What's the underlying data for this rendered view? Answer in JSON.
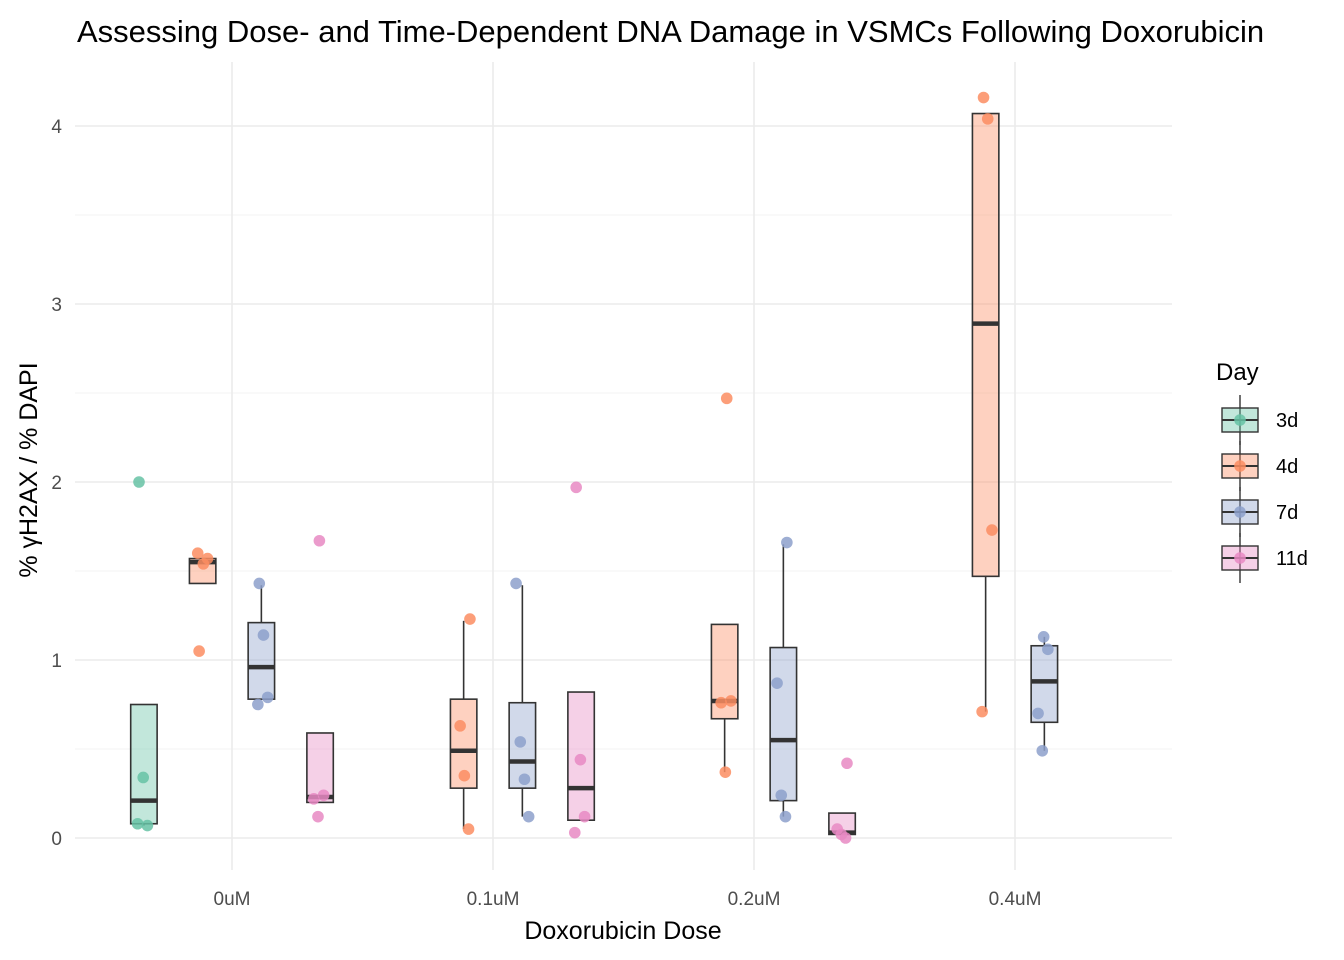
{
  "chart_data": {
    "type": "box",
    "title": "Assessing Dose- and Time-Dependent DNA Damage in VSMCs Following Doxorubicin",
    "xlabel": "Doxorubicin Dose",
    "ylabel": "% γH2AX / % DAPI",
    "categories": [
      "0uM",
      "0.1uM",
      "0.2uM",
      "0.4uM"
    ],
    "y_ticks": [
      "0",
      "1",
      "2",
      "3",
      "4"
    ],
    "ylim": [
      -0.15,
      4.3
    ],
    "grid": true,
    "legend": {
      "title": "Day",
      "placement": "right"
    },
    "series": [
      {
        "name": "3d",
        "color": "#66C2A5",
        "groups": [
          {
            "category": "0uM",
            "box": [
              0.08,
              0.21,
              0.75
            ],
            "whiskers": [
              0.07,
              0.75
            ],
            "points": [
              0.08,
              0.07,
              0.34,
              2.0
            ]
          }
        ]
      },
      {
        "name": "4d",
        "color": "#FC8D62",
        "groups": [
          {
            "category": "0uM",
            "box": [
              1.43,
              1.55,
              1.57
            ],
            "whiskers": [
              1.43,
              1.57
            ],
            "points": [
              1.6,
              1.57,
              1.54,
              1.05
            ]
          },
          {
            "category": "0.1uM",
            "box": [
              0.28,
              0.49,
              0.78
            ],
            "whiskers": [
              0.05,
              1.22
            ],
            "points": [
              0.05,
              0.35,
              0.63,
              1.23
            ]
          },
          {
            "category": "0.2uM",
            "box": [
              0.67,
              0.77,
              1.2
            ],
            "whiskers": [
              0.37,
              1.2
            ],
            "points": [
              0.37,
              0.76,
              0.77,
              2.47
            ]
          },
          {
            "category": "0.4uM",
            "box": [
              1.47,
              2.89,
              4.07
            ],
            "whiskers": [
              0.71,
              4.07
            ],
            "points": [
              0.71,
              1.73,
              4.04,
              4.16
            ]
          }
        ]
      },
      {
        "name": "7d",
        "color": "#8DA0CB",
        "groups": [
          {
            "category": "0uM",
            "box": [
              0.78,
              0.96,
              1.21
            ],
            "whiskers": [
              0.78,
              1.42
            ],
            "points": [
              0.75,
              0.79,
              1.14,
              1.43
            ]
          },
          {
            "category": "0.1uM",
            "box": [
              0.28,
              0.43,
              0.76
            ],
            "whiskers": [
              0.12,
              1.42
            ],
            "points": [
              0.12,
              0.33,
              0.54,
              1.43
            ]
          },
          {
            "category": "0.2uM",
            "box": [
              0.21,
              0.55,
              1.07
            ],
            "whiskers": [
              0.12,
              1.65
            ],
            "points": [
              0.12,
              0.24,
              0.87,
              1.66
            ]
          },
          {
            "category": "0.4uM",
            "box": [
              0.65,
              0.88,
              1.08
            ],
            "whiskers": [
              0.49,
              1.13
            ],
            "points": [
              0.49,
              0.7,
              1.06,
              1.13
            ]
          }
        ]
      },
      {
        "name": "11d",
        "color": "#E78AC3",
        "groups": [
          {
            "category": "0uM",
            "box": [
              0.2,
              0.23,
              0.59
            ],
            "whiskers": [
              0.2,
              0.59
            ],
            "points": [
              0.12,
              0.22,
              0.24,
              1.67
            ]
          },
          {
            "category": "0.1uM",
            "box": [
              0.1,
              0.28,
              0.82
            ],
            "whiskers": [
              0.1,
              0.82
            ],
            "points": [
              0.03,
              0.12,
              0.44,
              1.97
            ]
          },
          {
            "category": "0.2uM",
            "box": [
              0.02,
              0.03,
              0.14
            ],
            "whiskers": [
              0.02,
              0.14
            ],
            "points": [
              0.0,
              0.02,
              0.05,
              0.42
            ]
          }
        ]
      }
    ]
  }
}
